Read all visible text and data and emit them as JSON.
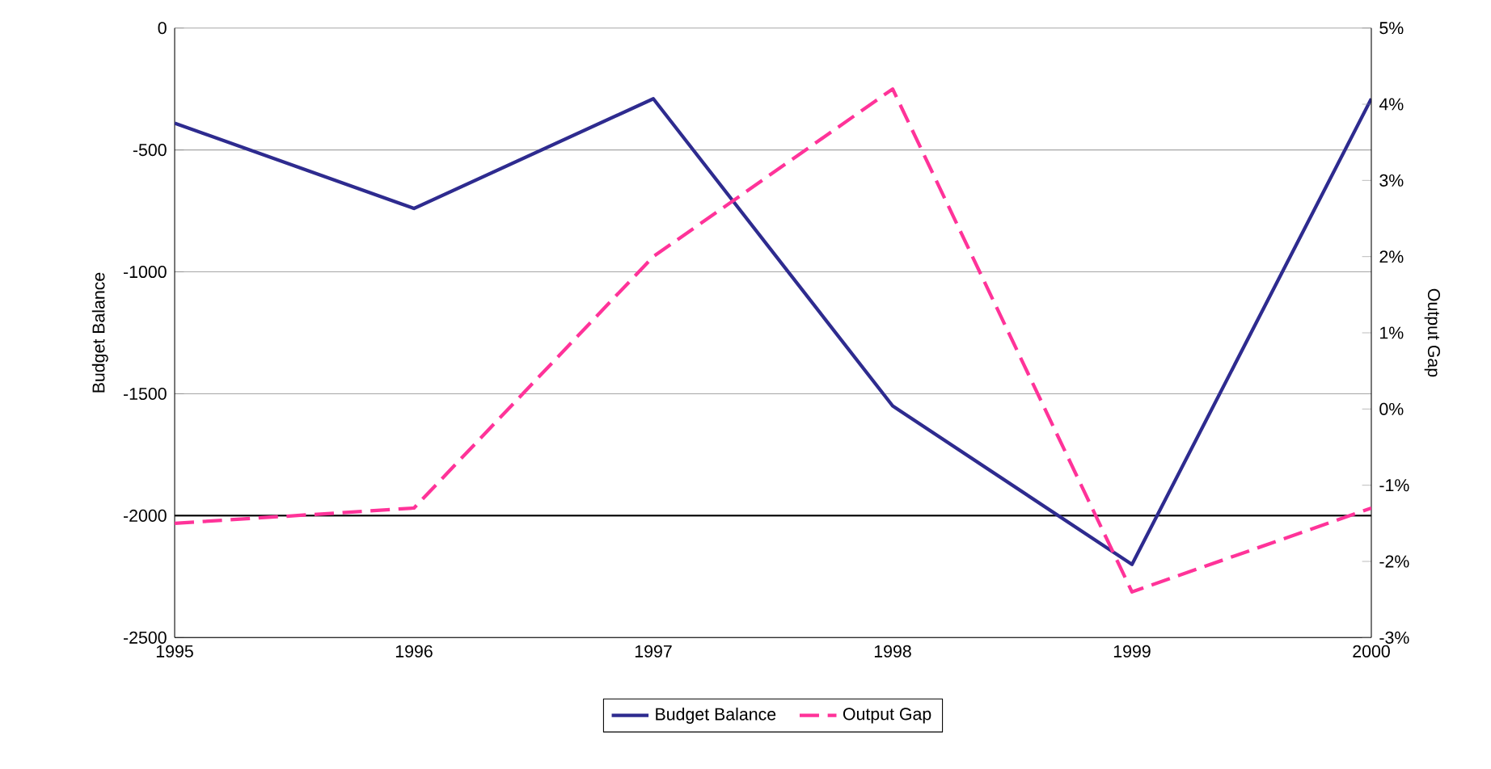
{
  "chart_data": {
    "type": "line",
    "xlabel": null,
    "ylabel": "Budget Balance",
    "y2label": "Output Gap",
    "x": [
      1995,
      1996,
      1997,
      1998,
      1999,
      2000
    ],
    "xlim": [
      1995,
      2000
    ],
    "xticks": [
      1995,
      1996,
      1997,
      1998,
      1999,
      2000
    ],
    "ylim": [
      -2500,
      0
    ],
    "yticks": [
      -2500,
      -2000,
      -1500,
      -1000,
      -500,
      0
    ],
    "y2lim": [
      -3,
      5
    ],
    "y2ticks": [
      {
        "value": -3,
        "label": "-3%"
      },
      {
        "value": -2,
        "label": "-2%"
      },
      {
        "value": -1,
        "label": "-1%"
      },
      {
        "value": 0,
        "label": "0%"
      },
      {
        "value": 1,
        "label": "1%"
      },
      {
        "value": 2,
        "label": "2%"
      },
      {
        "value": 3,
        "label": "3%"
      },
      {
        "value": 4,
        "label": "4%"
      },
      {
        "value": 5,
        "label": "5%"
      }
    ],
    "grid": "y",
    "legend": "bottom",
    "marker": "none",
    "ref_lines": [
      {
        "axis": "y",
        "value": -2000,
        "color": "#000000"
      }
    ],
    "series": [
      {
        "name": "Budget Balance",
        "color": "#2e2b8f",
        "line_style": "solid",
        "values": [
          -390,
          -740,
          -290,
          -1550,
          -2200,
          -290
        ]
      },
      {
        "name": "Output Gap",
        "color": "#ff3399",
        "line_style": "dashed",
        "axis": "y2",
        "values": [
          -1.5,
          -1.3,
          2.0,
          4.2,
          -2.4,
          -1.3
        ]
      }
    ]
  }
}
